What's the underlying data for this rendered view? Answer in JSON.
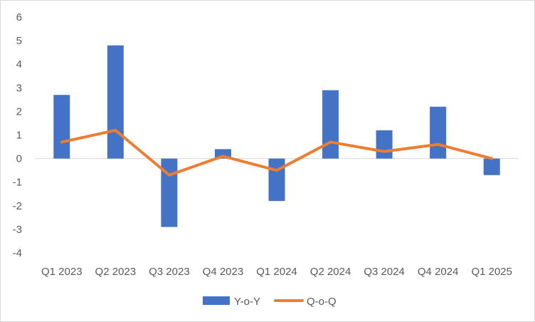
{
  "chart_data": {
    "type": "bar",
    "categories": [
      "Q1 2023",
      "Q2 2023",
      "Q3 2023",
      "Q4 2023",
      "Q1 2024",
      "Q2 2024",
      "Q3 2024",
      "Q4 2024",
      "Q1 2025"
    ],
    "series": [
      {
        "name": "Y-o-Y",
        "type": "bar",
        "color": "#4472C4",
        "values": [
          2.7,
          4.8,
          -2.9,
          0.4,
          -1.8,
          2.9,
          1.2,
          2.2,
          -0.7
        ]
      },
      {
        "name": "Q-o-Q",
        "type": "line",
        "color": "#ED7D31",
        "values": [
          0.7,
          1.2,
          -0.7,
          0.1,
          -0.5,
          0.7,
          0.3,
          0.6,
          0.0
        ]
      }
    ],
    "y_ticks": [
      "6",
      "5",
      "4",
      "3",
      "2",
      "1",
      "0",
      "-1",
      "-2",
      "-3",
      "-4"
    ],
    "ylim": [
      -4,
      6
    ],
    "grid": false,
    "legend_position": "bottom"
  }
}
